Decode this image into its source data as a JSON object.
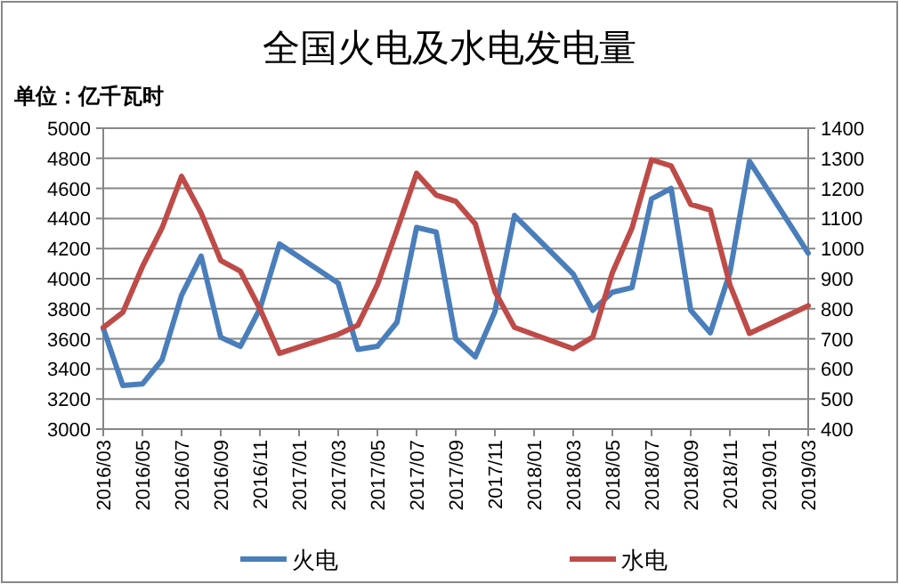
{
  "chart_data": {
    "type": "line",
    "title": "全国火电及水电发电量",
    "annotations": [
      "单位：亿千瓦时"
    ],
    "xlim": [
      "2016-03",
      "2019-03"
    ],
    "xticks": [
      {
        "value": "2016-03",
        "label": "2016/03"
      },
      {
        "value": "2016-05",
        "label": "2016/05"
      },
      {
        "value": "2016-07",
        "label": "2016/07"
      },
      {
        "value": "2016-09",
        "label": "2016/09"
      },
      {
        "value": "2016-11",
        "label": "2016/11"
      },
      {
        "value": "2017-01",
        "label": "2017/01"
      },
      {
        "value": "2017-03",
        "label": "2017/03"
      },
      {
        "value": "2017-05",
        "label": "2017/05"
      },
      {
        "value": "2017-07",
        "label": "2017/07"
      },
      {
        "value": "2017-09",
        "label": "2017/09"
      },
      {
        "value": "2017-11",
        "label": "2017/11"
      },
      {
        "value": "2018-01",
        "label": "2018/01"
      },
      {
        "value": "2018-03",
        "label": "2018/03"
      },
      {
        "value": "2018-05",
        "label": "2018/05"
      },
      {
        "value": "2018-07",
        "label": "2018/07"
      },
      {
        "value": "2018-09",
        "label": "2018/09"
      },
      {
        "value": "2018-11",
        "label": "2018/11"
      },
      {
        "value": "2019-01",
        "label": "2019/01"
      },
      {
        "value": "2019-03",
        "label": "2019/03"
      }
    ],
    "ylim": [
      3000,
      5000
    ],
    "yticks": [
      3000,
      3200,
      3400,
      3600,
      3800,
      4000,
      4200,
      4400,
      4600,
      4800,
      5000
    ],
    "y2lim": [
      400,
      1400
    ],
    "y2ticks": [
      400,
      500,
      600,
      700,
      800,
      900,
      1000,
      1100,
      1200,
      1300,
      1400
    ],
    "grid": "y",
    "legend": "bottom",
    "marker": "none",
    "line_style": "solid",
    "series": [
      {
        "name": "火电",
        "color": "#4a7ebb",
        "x": [
          "2016-03",
          "2016-04",
          "2016-05",
          "2016-06",
          "2016-07",
          "2016-08",
          "2016-09",
          "2016-10",
          "2016-11",
          "2016-12",
          "2017-03",
          "2017-04",
          "2017-05",
          "2017-06",
          "2017-07",
          "2017-08",
          "2017-09",
          "2017-10",
          "2017-11",
          "2017-12",
          "2018-03",
          "2018-04",
          "2018-05",
          "2018-06",
          "2018-07",
          "2018-08",
          "2018-09",
          "2018-10",
          "2018-11",
          "2018-12",
          "2019-03"
        ],
        "values": [
          3670,
          3290,
          3300,
          3460,
          3890,
          4150,
          3610,
          3550,
          3800,
          4230,
          3970,
          3530,
          3550,
          3710,
          4340,
          4310,
          3600,
          3480,
          3780,
          4420,
          4030,
          3790,
          3910,
          3940,
          4530,
          4600,
          3790,
          3640,
          4040,
          4780,
          4170
        ]
      },
      {
        "name": "水电",
        "color": "#be4b48",
        "axis": "y2",
        "x": [
          "2016-03",
          "2016-04",
          "2016-05",
          "2016-06",
          "2016-07",
          "2016-08",
          "2016-09",
          "2016-10",
          "2016-11",
          "2016-12",
          "2017-03",
          "2017-04",
          "2017-05",
          "2017-06",
          "2017-07",
          "2017-08",
          "2017-09",
          "2017-10",
          "2017-11",
          "2017-12",
          "2018-03",
          "2018-04",
          "2018-05",
          "2018-06",
          "2018-07",
          "2018-08",
          "2018-09",
          "2018-10",
          "2018-11",
          "2018-12",
          "2019-03"
        ],
        "values": [
          738,
          788,
          940,
          1068,
          1240,
          1118,
          960,
          925,
          800,
          652,
          715,
          745,
          880,
          1062,
          1250,
          1178,
          1157,
          1082,
          857,
          738,
          667,
          706,
          920,
          1068,
          1295,
          1275,
          1147,
          1128,
          880,
          718,
          810
        ]
      }
    ]
  }
}
